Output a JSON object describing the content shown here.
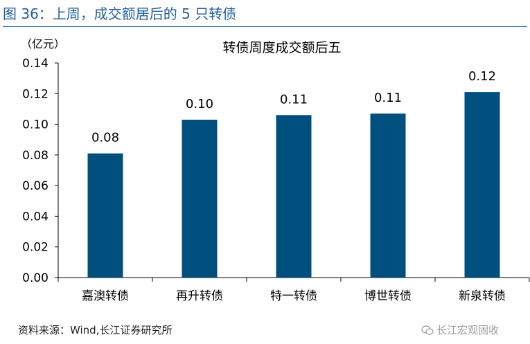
{
  "figure_title": "图 36：上周，成交额居后的 5 只转债",
  "source": "资料来源：Wind,长江证券研究所",
  "watermark": "长江宏观固收",
  "colors": {
    "bar": "#00507f",
    "title": "#1f5f9a"
  },
  "chart_data": {
    "type": "bar",
    "title": "转债周度成交额后五",
    "ylabel": "（亿元）",
    "xlabel": "",
    "categories": [
      "嘉澳转债",
      "再升转债",
      "特一转债",
      "博世转债",
      "新泉转债"
    ],
    "values": [
      0.081,
      0.103,
      0.106,
      0.107,
      0.121
    ],
    "data_labels": [
      "0.08",
      "0.10",
      "0.11",
      "0.11",
      "0.12"
    ],
    "ylim": [
      0,
      0.14
    ],
    "yticks": [
      "0.00",
      "0.02",
      "0.04",
      "0.06",
      "0.08",
      "0.10",
      "0.12",
      "0.14"
    ],
    "grid": false,
    "legend": "none"
  }
}
